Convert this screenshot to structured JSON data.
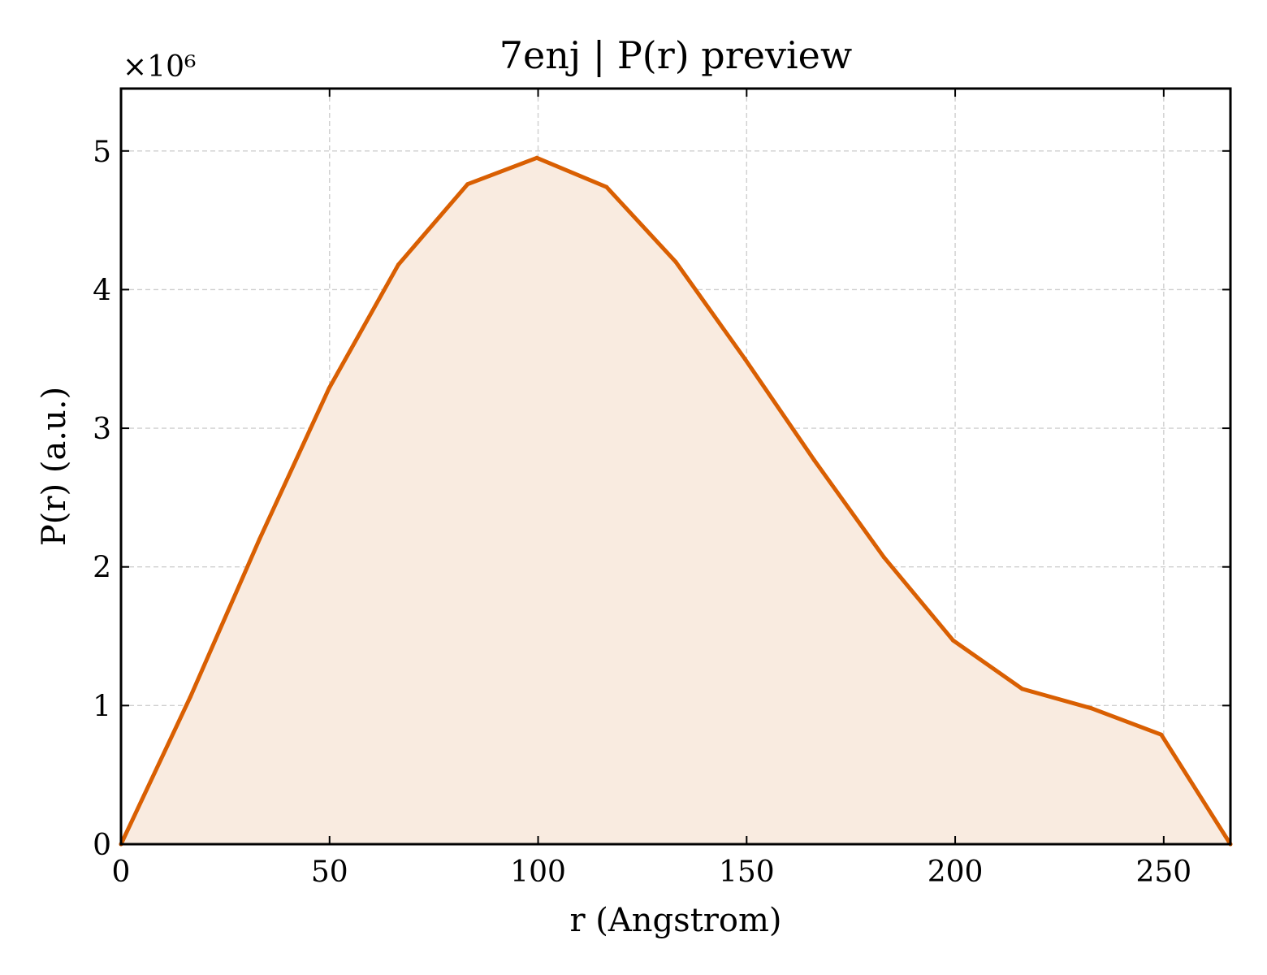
{
  "chart_data": {
    "type": "area",
    "title": "7enj | P(r) preview",
    "xlabel": "r (Angstrom)",
    "ylabel": "P(r) (a.u.)",
    "y_multiplier": "×10⁶",
    "xlim": [
      0,
      266
    ],
    "ylim": [
      0,
      5.45
    ],
    "x_ticks": [
      0,
      50,
      100,
      150,
      200,
      250
    ],
    "y_ticks": [
      0,
      1,
      2,
      3,
      4,
      5
    ],
    "grid": true,
    "legend": "none",
    "series": [
      {
        "x": [
          0,
          16.6,
          33.2,
          49.9,
          66.5,
          83.1,
          99.7,
          116.4,
          133.0,
          149.6,
          166.2,
          182.9,
          199.5,
          216.1,
          232.7,
          249.4,
          266.0
        ],
        "values": [
          0.0,
          1.06,
          2.2,
          3.29,
          4.18,
          4.76,
          4.95,
          4.74,
          4.2,
          3.5,
          2.77,
          2.07,
          1.47,
          1.12,
          0.98,
          0.79,
          0.0
        ],
        "color": "#d95f02",
        "fill_color": "#f9ebe0"
      }
    ]
  }
}
